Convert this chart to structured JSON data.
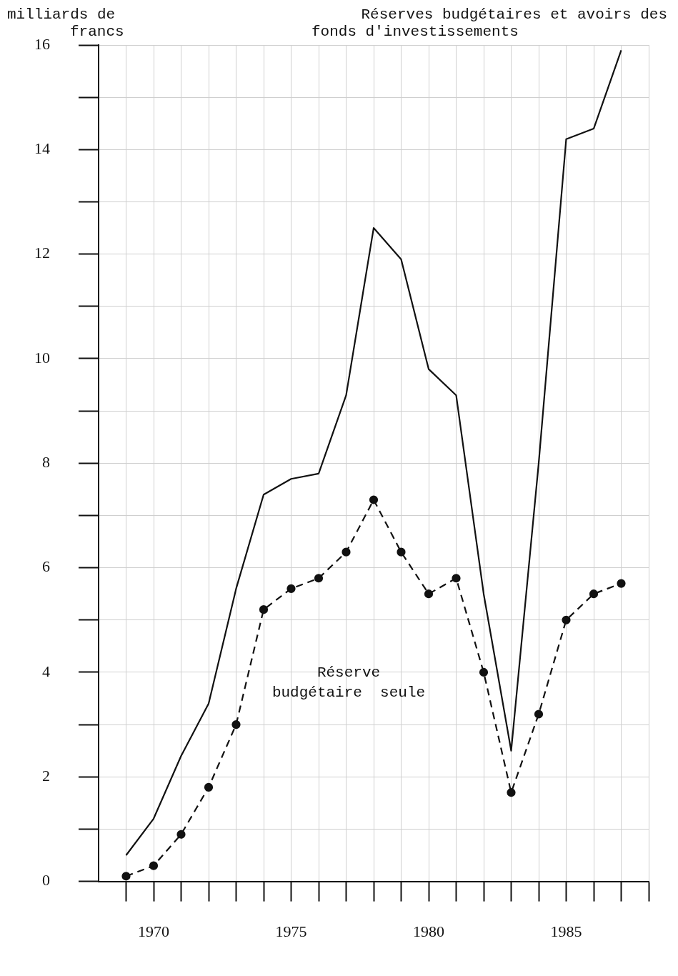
{
  "chart_data": {
    "type": "line",
    "ylabel": "milliards de francs",
    "x": [
      1969,
      1970,
      1971,
      1972,
      1973,
      1974,
      1975,
      1976,
      1977,
      1978,
      1979,
      1980,
      1981,
      1982,
      1983,
      1984,
      1985,
      1986,
      1987
    ],
    "series": [
      {
        "name": "Réserves budgétaires et avoirs des fonds d'investissements",
        "color": "#111111",
        "line_style": "solid",
        "marker": "none",
        "values": [
          0.5,
          1.2,
          2.4,
          3.4,
          5.6,
          7.4,
          7.7,
          7.8,
          9.3,
          12.5,
          11.9,
          9.8,
          9.3,
          5.5,
          2.5,
          8.0,
          14.2,
          14.4,
          15.9
        ]
      },
      {
        "name": "Réserve budgétaire seule",
        "color": "#111111",
        "line_style": "dashed",
        "marker": "circle",
        "values": [
          0.1,
          0.3,
          0.9,
          1.8,
          3.0,
          5.2,
          5.6,
          5.8,
          6.3,
          7.3,
          6.3,
          5.5,
          5.8,
          4.0,
          1.7,
          3.2,
          5.0,
          5.5,
          5.7
        ]
      }
    ],
    "xlim": [
      1968,
      1988
    ],
    "xticks": [
      {
        "value": 1969,
        "label": null
      },
      1970,
      {
        "value": 1971,
        "label": null
      },
      {
        "value": 1972,
        "label": null
      },
      {
        "value": 1973,
        "label": null
      },
      {
        "value": 1974,
        "label": null
      },
      1975,
      {
        "value": 1976,
        "label": null
      },
      {
        "value": 1977,
        "label": null
      },
      {
        "value": 1978,
        "label": null
      },
      {
        "value": 1979,
        "label": null
      },
      1980,
      {
        "value": 1981,
        "label": null
      },
      {
        "value": 1982,
        "label": null
      },
      {
        "value": 1983,
        "label": null
      },
      {
        "value": 1984,
        "label": null
      },
      1985,
      {
        "value": 1986,
        "label": null
      },
      {
        "value": 1987,
        "label": null
      },
      {
        "value": 1988,
        "label": null
      }
    ],
    "ylim": [
      0,
      16
    ],
    "yticks": [
      0,
      {
        "value": 1,
        "label": null
      },
      2,
      {
        "value": 3,
        "label": null
      },
      4,
      {
        "value": 5,
        "label": null
      },
      6,
      {
        "value": 7,
        "label": null
      },
      8,
      {
        "value": 9,
        "label": null
      },
      10,
      {
        "value": 11,
        "label": null
      },
      12,
      {
        "value": 13,
        "label": null
      },
      14,
      {
        "value": 15,
        "label": null
      },
      16
    ],
    "grid": true,
    "legend": false
  }
}
